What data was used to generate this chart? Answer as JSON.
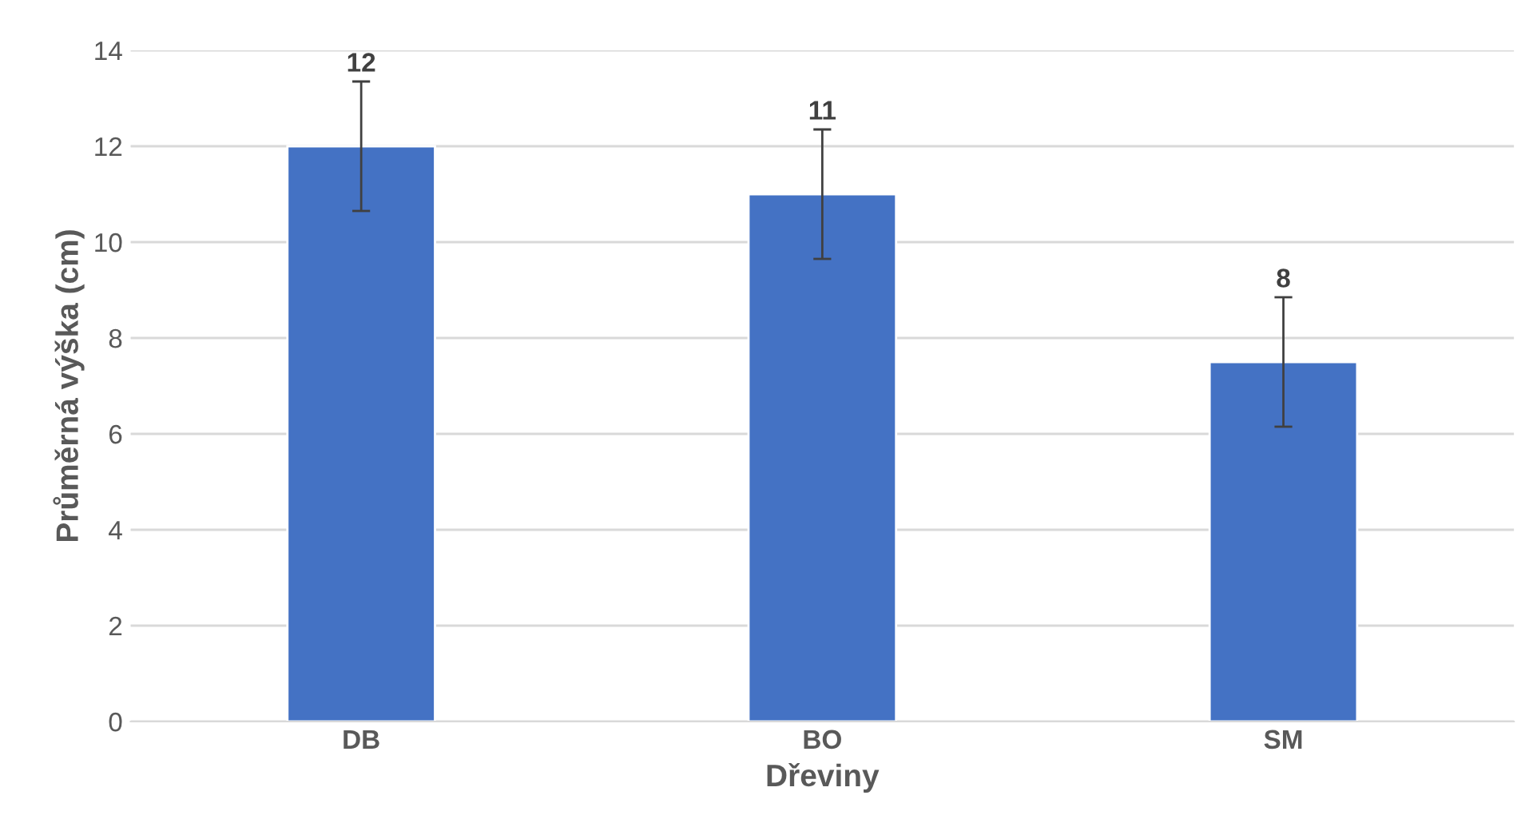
{
  "chart_data": {
    "type": "bar",
    "xlabel": "Dřeviny",
    "ylabel": "Průměrná výška (cm)",
    "categories": [
      "DB",
      "BO",
      "SM"
    ],
    "values": [
      12.0,
      11.0,
      7.5
    ],
    "color": "#4472c4",
    "errors": [
      1.35,
      1.35,
      1.35
    ],
    "value_labels": [
      "12",
      "11",
      "8"
    ],
    "ylim": [
      0,
      14
    ],
    "yticks": [
      0,
      2,
      4,
      6,
      8,
      10,
      12,
      14
    ],
    "grid": "y",
    "legend": false
  }
}
